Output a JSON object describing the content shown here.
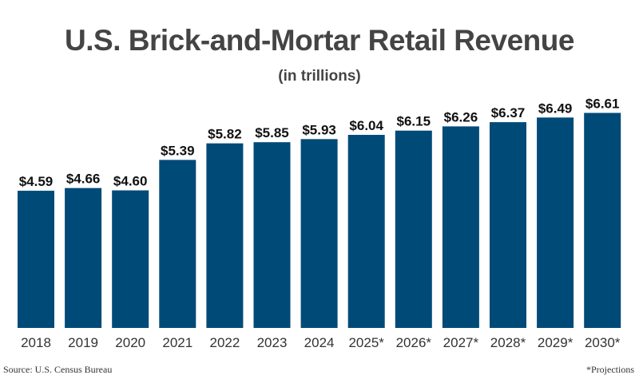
{
  "chart_data": {
    "type": "bar",
    "title": "U.S. Brick-and-Mortar Retail Revenue",
    "subtitle": "(in trillions)",
    "categories": [
      "2018",
      "2019",
      "2020",
      "2021",
      "2022",
      "2023",
      "2024",
      "2025*",
      "2026*",
      "2027*",
      "2028*",
      "2029*",
      "2030*"
    ],
    "values": [
      4.59,
      4.66,
      4.6,
      5.39,
      5.82,
      5.85,
      5.93,
      6.04,
      6.15,
      6.26,
      6.37,
      6.49,
      6.61
    ],
    "labels": [
      "$4.59",
      "$4.66",
      "$4.60",
      "$5.39",
      "$5.82",
      "$5.85",
      "$5.93",
      "$6.04",
      "$6.15",
      "$6.26",
      "$6.37",
      "$6.49",
      "$6.61"
    ],
    "xlabel": "",
    "ylabel": "",
    "ylim": [
      1.03,
      7.2
    ],
    "grid": false,
    "bar_color": "#004a78"
  },
  "footer": {
    "source": "Source: U.S. Census Bureau",
    "note": "*Projections"
  }
}
